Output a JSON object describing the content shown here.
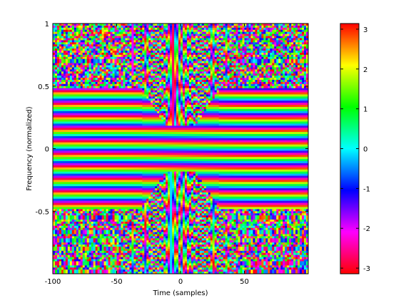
{
  "chart_data": {
    "type": "heatmap",
    "title": "",
    "xlabel": "Time (samples)",
    "ylabel": "Frequency (normalized)",
    "xlim": [
      -100,
      100
    ],
    "ylim": [
      -1,
      1
    ],
    "x_ticks": [
      -100,
      -50,
      0,
      50
    ],
    "x_tick_labels": [
      "-100",
      "-50",
      "0",
      "50"
    ],
    "y_ticks": [
      1,
      0.5,
      0,
      -0.5
    ],
    "y_tick_labels": [
      "1",
      "0.5",
      "0",
      "-0.5"
    ],
    "colorbar": {
      "colormap": "hsv",
      "range": [
        -3.14159,
        3.14159
      ],
      "ticks": [
        3,
        2,
        1,
        0,
        -1,
        -2,
        -3
      ],
      "tick_labels": [
        "3",
        "2",
        "1",
        "0",
        "-1",
        "-2",
        "-3"
      ]
    },
    "field": {
      "description_key": "phase",
      "central_band_halfwidth_t": 45,
      "flat_band_freq_limit": 0.48,
      "rows_per_unit_freq": 20,
      "chirp_slope": 0.55
    },
    "grid": false,
    "legend": "none"
  }
}
